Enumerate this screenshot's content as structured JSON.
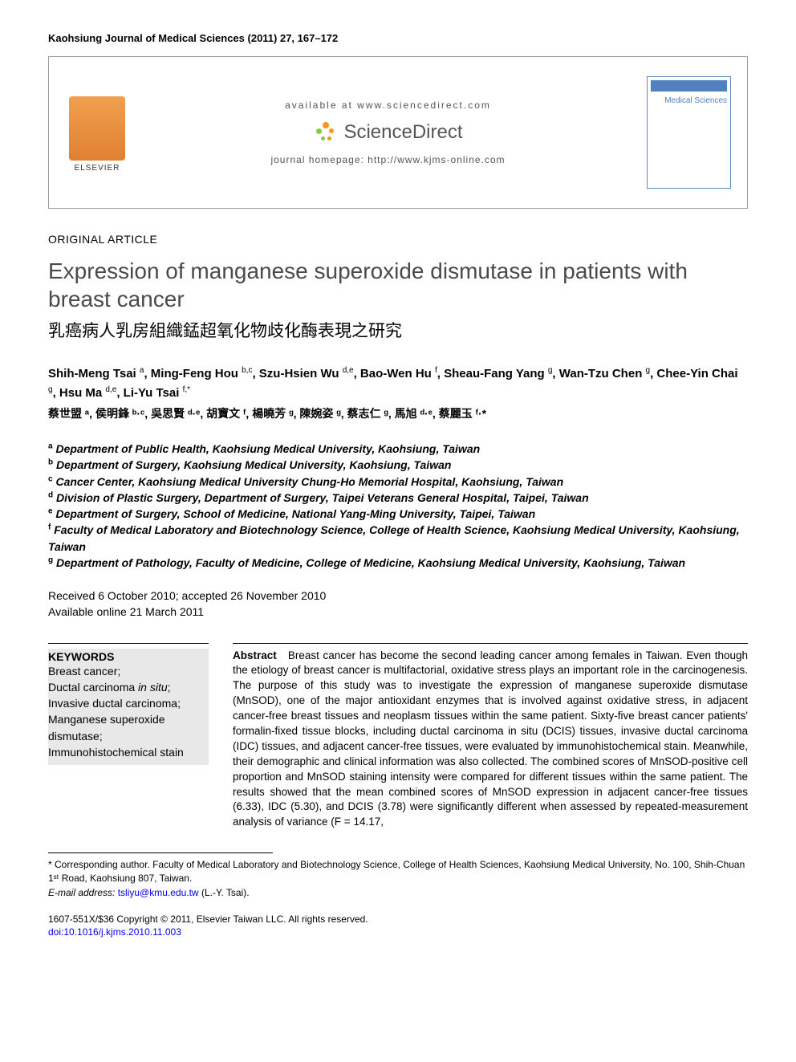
{
  "header": {
    "journal_ref": "Kaohsiung Journal of Medical Sciences (2011) 27, 167–172"
  },
  "top_box": {
    "elsevier": "ELSEVIER",
    "available": "available at www.sciencedirect.com",
    "sd_brand": "ScienceDirect",
    "homepage": "journal homepage: http://www.kjms-online.com",
    "cover_title": "Medical Sciences"
  },
  "article": {
    "type": "ORIGINAL ARTICLE",
    "title_en": "Expression of manganese superoxide dismutase in patients with breast cancer",
    "title_zh": "乳癌病人乳房組織錳超氧化物歧化酶表現之研究"
  },
  "authors": {
    "en": [
      {
        "name": "Shih-Meng Tsai",
        "aff": "a"
      },
      {
        "name": "Ming-Feng Hou",
        "aff": "b,c"
      },
      {
        "name": "Szu-Hsien Wu",
        "aff": "d,e"
      },
      {
        "name": "Bao-Wen Hu",
        "aff": "f"
      },
      {
        "name": "Sheau-Fang Yang",
        "aff": "g"
      },
      {
        "name": "Wan-Tzu Chen",
        "aff": "g"
      },
      {
        "name": "Chee-Yin Chai",
        "aff": "g"
      },
      {
        "name": "Hsu Ma",
        "aff": "d,e"
      },
      {
        "name": "Li-Yu Tsai",
        "aff": "f,*"
      }
    ],
    "zh_line": "蔡世盟 ᵃ, 侯明鋒 ᵇ·ᶜ, 吳思賢 ᵈ·ᵉ, 胡寶文 ᶠ, 楊曉芳 ᵍ, 陳婉姿 ᵍ, 蔡志仁 ᵍ, 馬旭 ᵈ·ᵉ, 蔡麗玉 ᶠ·*"
  },
  "affiliations": [
    {
      "sup": "a",
      "text": "Department of Public Health, Kaohsiung Medical University, Kaohsiung, Taiwan"
    },
    {
      "sup": "b",
      "text": "Department of Surgery, Kaohsiung Medical University, Kaohsiung, Taiwan"
    },
    {
      "sup": "c",
      "text": "Cancer Center, Kaohsiung Medical University Chung-Ho Memorial Hospital, Kaohsiung, Taiwan"
    },
    {
      "sup": "d",
      "text": "Division of Plastic Surgery, Department of Surgery, Taipei Veterans General Hospital, Taipei, Taiwan"
    },
    {
      "sup": "e",
      "text": "Department of Surgery, School of Medicine, National Yang-Ming University, Taipei, Taiwan"
    },
    {
      "sup": "f",
      "text": "Faculty of Medical Laboratory and Biotechnology Science, College of Health Science, Kaohsiung Medical University, Kaohsiung, Taiwan"
    },
    {
      "sup": "g",
      "text": "Department of Pathology, Faculty of Medicine, College of Medicine, Kaohsiung Medical University, Kaohsiung, Taiwan"
    }
  ],
  "dates": {
    "received_accepted": "Received 6 October 2010; accepted 26 November 2010",
    "online": "Available online 21 March 2011"
  },
  "keywords": {
    "title": "KEYWORDS",
    "items": "Breast cancer;\nDuctal carcinoma in situ;\nInvasive ductal carcinoma;\nManganese superoxide dismutase;\nImmunohistochemical stain"
  },
  "abstract": {
    "label": "Abstract",
    "text": "Breast cancer has become the second leading cancer among females in Taiwan. Even though the etiology of breast cancer is multifactorial, oxidative stress plays an important role in the carcinogenesis. The purpose of this study was to investigate the expression of manganese superoxide dismutase (MnSOD), one of the major antioxidant enzymes that is involved against oxidative stress, in adjacent cancer-free breast tissues and neoplasm tissues within the same patient. Sixty-five breast cancer patients' formalin-fixed tissue blocks, including ductal carcinoma in situ (DCIS) tissues, invasive ductal carcinoma (IDC) tissues, and adjacent cancer-free tissues, were evaluated by immunohistochemical stain. Meanwhile, their demographic and clinical information was also collected. The combined scores of MnSOD-positive cell proportion and MnSOD staining intensity were compared for different tissues within the same patient. The results showed that the mean combined scores of MnSOD expression in adjacent cancer-free tissues (6.33), IDC (5.30), and DCIS (3.78) were significantly different when assessed by repeated-measurement analysis of variance (F = 14.17,"
  },
  "footer": {
    "corresponding": "* Corresponding author. Faculty of Medical Laboratory and Biotechnology Science, College of Health Sciences, Kaohsiung Medical University, No. 100, Shih-Chuan 1ˢᵗ Road, Kaohsiung 807, Taiwan.",
    "email_label": "E-mail address:",
    "email": "tsliyu@kmu.edu.tw",
    "email_suffix": "(L.-Y. Tsai).",
    "copyright": "1607-551X/$36 Copyright © 2011, Elsevier Taiwan LLC. All rights reserved.",
    "doi": "doi:10.1016/j.kjms.2010.11.003"
  },
  "colors": {
    "elsevier_orange": "#e08030",
    "cover_blue": "#5080c0",
    "sd_orange": "#f7981d",
    "sd_green": "#8cc63f",
    "link_blue": "#0000ee",
    "keyword_bg": "#e8e8e8",
    "title_gray": "#4a4a4a"
  }
}
